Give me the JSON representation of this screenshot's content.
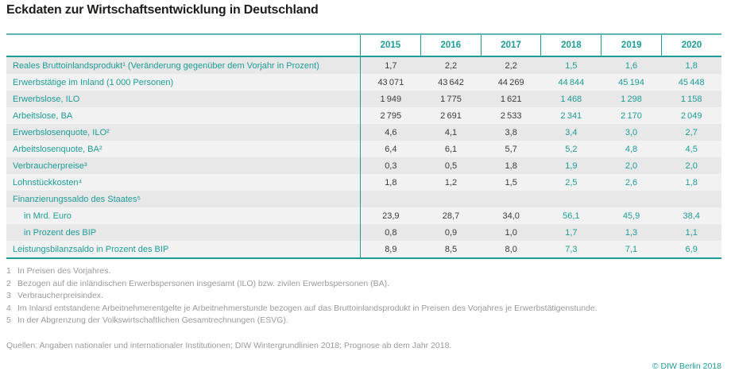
{
  "title": "Eckdaten zur Wirtschaftsentwicklung in Deutschland",
  "chart_data": {
    "type": "table",
    "columns": [
      "2015",
      "2016",
      "2017",
      "2018",
      "2019",
      "2020"
    ],
    "forecast_from_column_index": 3,
    "rows": [
      {
        "label": "Reales Bruttoinlandsprodukt¹ (Veränderung gegenüber dem Vorjahr in Prozent)",
        "indent": false,
        "values": [
          "1,7",
          "2,2",
          "2,2",
          "1,5",
          "1,6",
          "1,8"
        ]
      },
      {
        "label": "Erwerbstätige im Inland (1 000 Personen)",
        "indent": false,
        "values": [
          "43 071",
          "43 642",
          "44 269",
          "44 844",
          "45 194",
          "45 448"
        ]
      },
      {
        "label": "Erwerbslose, ILO",
        "indent": false,
        "values": [
          "1 949",
          "1 775",
          "1 621",
          "1 468",
          "1 298",
          "1 158"
        ]
      },
      {
        "label": "Arbeitslose, BA",
        "indent": false,
        "values": [
          "2 795",
          "2 691",
          "2 533",
          "2 341",
          "2 170",
          "2 049"
        ]
      },
      {
        "label": "Erwerbslosenquote, ILO²",
        "indent": false,
        "values": [
          "4,6",
          "4,1",
          "3,8",
          "3,4",
          "3,0",
          "2,7"
        ]
      },
      {
        "label": "Arbeitslosenquote, BA²",
        "indent": false,
        "values": [
          "6,4",
          "6,1",
          "5,7",
          "5,2",
          "4,8",
          "4,5"
        ]
      },
      {
        "label": "Verbraucherpreise³",
        "indent": false,
        "values": [
          "0,3",
          "0,5",
          "1,8",
          "1,9",
          "2,0",
          "2,0"
        ]
      },
      {
        "label": "Lohnstückkosten⁴",
        "indent": false,
        "values": [
          "1,8",
          "1,2",
          "1,5",
          "2,5",
          "2,6",
          "1,8"
        ]
      },
      {
        "label": "Finanzierungssaldo des Staates⁵",
        "indent": false,
        "values": [
          "",
          "",
          "",
          "",
          "",
          ""
        ]
      },
      {
        "label": "in Mrd. Euro",
        "indent": true,
        "values": [
          "23,9",
          "28,7",
          "34,0",
          "56,1",
          "45,9",
          "38,4"
        ]
      },
      {
        "label": "in Prozent des BIP",
        "indent": true,
        "values": [
          "0,8",
          "0,9",
          "1,0",
          "1,7",
          "1,3",
          "1,1"
        ]
      },
      {
        "label": "Leistungsbilanzsaldo in Prozent des BIP",
        "indent": false,
        "values": [
          "8,9",
          "8,5",
          "8,0",
          "7,3",
          "7,1",
          "6,9"
        ]
      }
    ]
  },
  "footnotes": [
    {
      "num": "1",
      "text": "In Preisen des Vorjahres."
    },
    {
      "num": "2",
      "text": "Bezogen auf die inländischen Erwerbspersonen insgesamt (ILO) bzw. zivilen Erwerbspersonen (BA)."
    },
    {
      "num": "3",
      "text": "Verbraucherpreisindex."
    },
    {
      "num": "4",
      "text": "Im Inland entstandene Arbeitnehmerentgelte je Arbeitnehmerstunde bezogen auf das Bruttoinlandsprodukt in Preisen des Vorjahres je Erwerbstätigenstunde."
    },
    {
      "num": "5",
      "text": "In der Abgrenzung der Volkswirtschaftlichen Gesamtrechnungen (ESVG)."
    }
  ],
  "source": "Quellen: Angaben nationaler und internationaler Institutionen; DIW Wintergrundlinien 2018; Prognose ab dem Jahr 2018.",
  "copyright": "© DIW Berlin 2018",
  "colors": {
    "accent_teal": "#1E9C96",
    "header_top_rule": "#5ab5b0",
    "row_shade": "#e8e8e8",
    "row_light": "#f2f2f2",
    "historical_value_text": "#3a3a3a",
    "footnote_gray": "#9a9a9a",
    "title_text": "#1d1d1b"
  }
}
